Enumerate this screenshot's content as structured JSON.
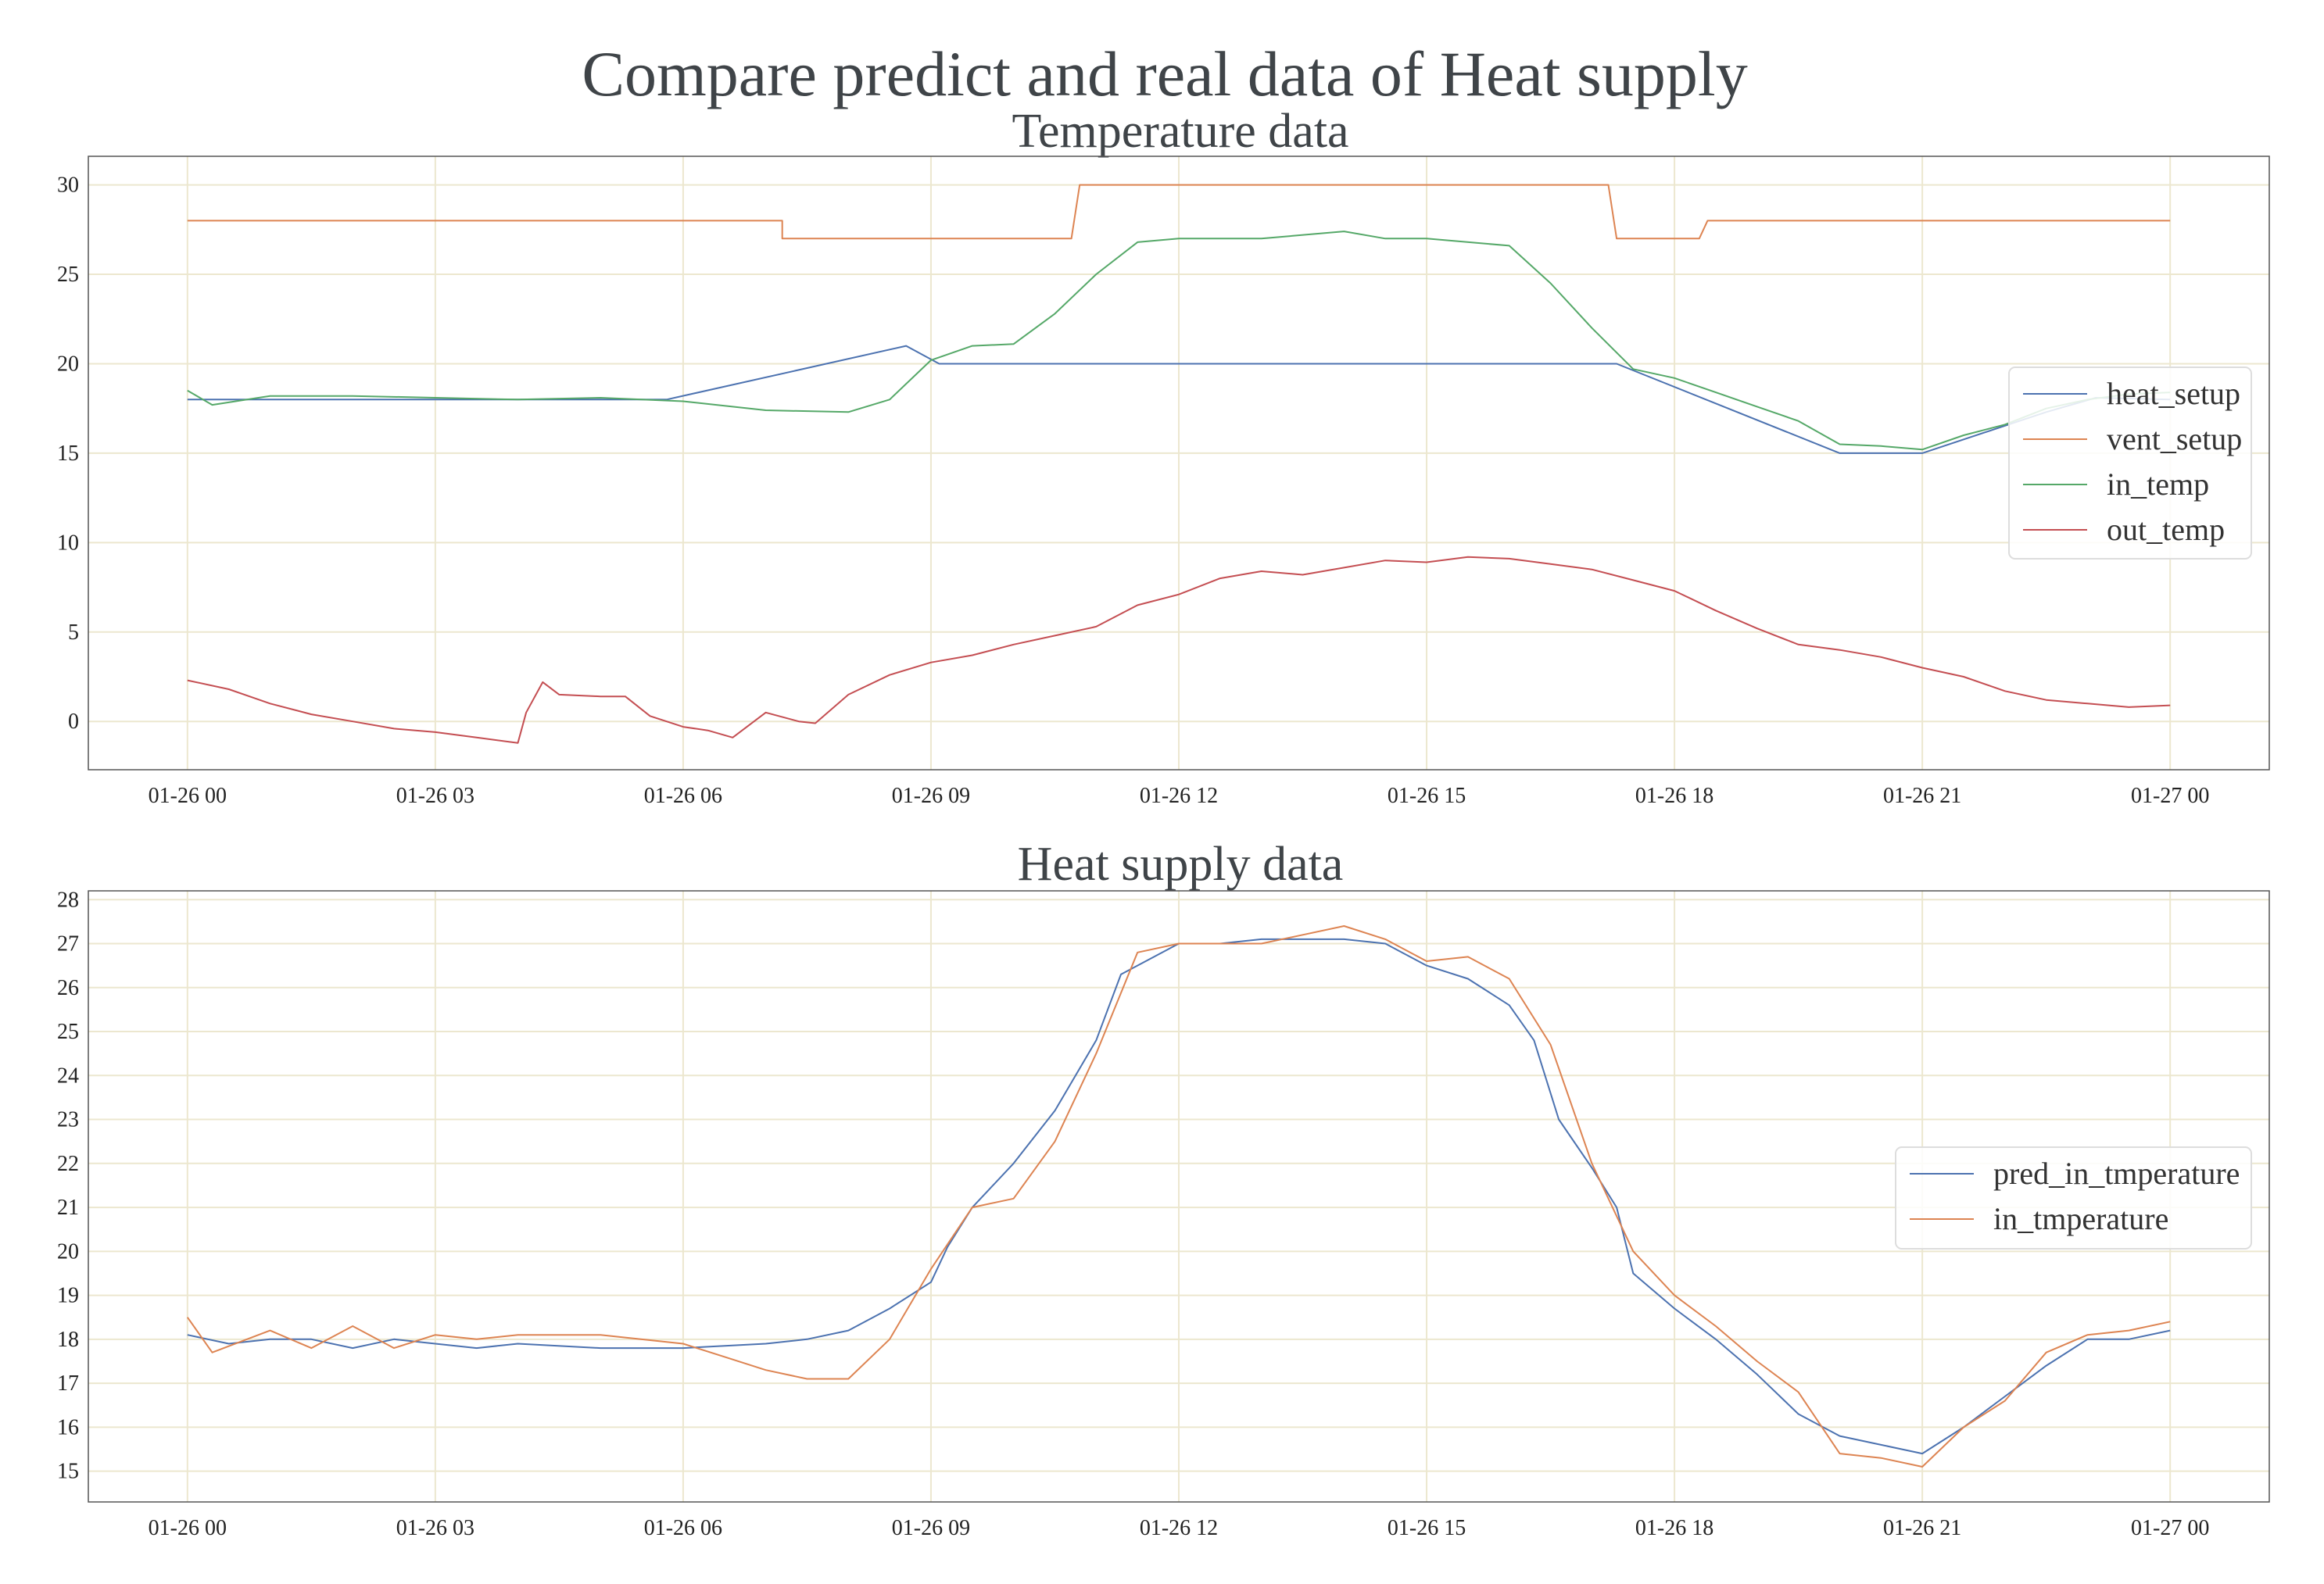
{
  "figure": {
    "title": "Compare predict and real data of Heat supply"
  },
  "chart_data": [
    {
      "type": "line",
      "title": "Temperature data",
      "xlabel": "",
      "ylabel": "",
      "x_ticks": [
        "01-26 00",
        "01-26 03",
        "01-26 06",
        "01-26 09",
        "01-26 12",
        "01-26 15",
        "01-26 18",
        "01-26 21",
        "01-27 00"
      ],
      "x_tick_hours": [
        0,
        3,
        6,
        9,
        12,
        15,
        18,
        21,
        24
      ],
      "xlim_hours": [
        -1.2,
        25.2
      ],
      "ylim": [
        -2.7,
        31.6
      ],
      "y_ticks": [
        0,
        5,
        10,
        15,
        20,
        25,
        30
      ],
      "grid": true,
      "legend": "right",
      "series": [
        {
          "name": "heat_setup",
          "color": "#4c72b0",
          "points": [
            [
              0,
              18
            ],
            [
              5.8,
              18
            ],
            [
              8.7,
              21
            ],
            [
              9.1,
              20
            ],
            [
              17.3,
              20
            ],
            [
              20,
              15
            ],
            [
              21,
              15
            ],
            [
              22.5,
              17.3
            ],
            [
              23.1,
              18.1
            ],
            [
              24,
              18
            ]
          ]
        },
        {
          "name": "vent_setup",
          "color": "#dd8452",
          "points": [
            [
              0,
              28
            ],
            [
              7.2,
              28
            ],
            [
              7.2,
              27
            ],
            [
              10.7,
              27
            ],
            [
              10.8,
              30
            ],
            [
              17.2,
              30
            ],
            [
              17.3,
              27
            ],
            [
              18.3,
              27
            ],
            [
              18.4,
              28
            ],
            [
              24,
              28
            ]
          ]
        },
        {
          "name": "in_temp",
          "color": "#55a868",
          "points": [
            [
              0,
              18.5
            ],
            [
              0.3,
              17.7
            ],
            [
              1,
              18.2
            ],
            [
              2,
              18.2
            ],
            [
              3,
              18.1
            ],
            [
              4,
              18
            ],
            [
              5,
              18.1
            ],
            [
              6,
              17.9
            ],
            [
              7,
              17.4
            ],
            [
              8,
              17.3
            ],
            [
              8.5,
              18
            ],
            [
              9,
              20.2
            ],
            [
              9.5,
              21
            ],
            [
              10,
              21.1
            ],
            [
              10.5,
              22.8
            ],
            [
              11,
              25
            ],
            [
              11.5,
              26.8
            ],
            [
              12,
              27
            ],
            [
              13,
              27
            ],
            [
              14,
              27.4
            ],
            [
              14.5,
              27
            ],
            [
              15,
              27
            ],
            [
              16,
              26.6
            ],
            [
              16.5,
              24.5
            ],
            [
              17,
              22
            ],
            [
              17.5,
              19.7
            ],
            [
              18,
              19.2
            ],
            [
              18.5,
              18.4
            ],
            [
              19,
              17.6
            ],
            [
              19.5,
              16.8
            ],
            [
              20,
              15.5
            ],
            [
              20.5,
              15.4
            ],
            [
              21,
              15.2
            ],
            [
              21.5,
              16
            ],
            [
              22,
              16.6
            ],
            [
              22.5,
              17.5
            ],
            [
              23,
              18
            ],
            [
              23.5,
              18.3
            ],
            [
              24,
              18.4
            ]
          ]
        },
        {
          "name": "out_temp",
          "color": "#c44e52",
          "points": [
            [
              0,
              2.3
            ],
            [
              0.5,
              1.8
            ],
            [
              1,
              1
            ],
            [
              1.5,
              0.4
            ],
            [
              2,
              0
            ],
            [
              2.5,
              -0.4
            ],
            [
              3,
              -0.6
            ],
            [
              3.5,
              -0.9
            ],
            [
              4,
              -1.2
            ],
            [
              4.1,
              0.5
            ],
            [
              4.3,
              2.2
            ],
            [
              4.5,
              1.5
            ],
            [
              5,
              1.4
            ],
            [
              5.3,
              1.4
            ],
            [
              5.6,
              0.3
            ],
            [
              6,
              -0.3
            ],
            [
              6.3,
              -0.5
            ],
            [
              6.6,
              -0.9
            ],
            [
              7,
              0.5
            ],
            [
              7.4,
              0
            ],
            [
              7.6,
              -0.1
            ],
            [
              8,
              1.5
            ],
            [
              8.5,
              2.6
            ],
            [
              9,
              3.3
            ],
            [
              9.5,
              3.7
            ],
            [
              10,
              4.3
            ],
            [
              10.5,
              4.8
            ],
            [
              11,
              5.3
            ],
            [
              11.5,
              6.5
            ],
            [
              12,
              7.1
            ],
            [
              12.5,
              8
            ],
            [
              13,
              8.4
            ],
            [
              13.5,
              8.2
            ],
            [
              14,
              8.6
            ],
            [
              14.5,
              9
            ],
            [
              15,
              8.9
            ],
            [
              15.5,
              9.2
            ],
            [
              16,
              9.1
            ],
            [
              16.5,
              8.8
            ],
            [
              17,
              8.5
            ],
            [
              17.5,
              7.9
            ],
            [
              18,
              7.3
            ],
            [
              18.5,
              6.2
            ],
            [
              19,
              5.2
            ],
            [
              19.5,
              4.3
            ],
            [
              20,
              4
            ],
            [
              20.5,
              3.6
            ],
            [
              21,
              3
            ],
            [
              21.5,
              2.5
            ],
            [
              22,
              1.7
            ],
            [
              22.5,
              1.2
            ],
            [
              23,
              1
            ],
            [
              23.5,
              0.8
            ],
            [
              24,
              0.9
            ]
          ]
        }
      ]
    },
    {
      "type": "line",
      "title": "Heat supply data",
      "xlabel": "",
      "ylabel": "",
      "x_ticks": [
        "01-26 00",
        "01-26 03",
        "01-26 06",
        "01-26 09",
        "01-26 12",
        "01-26 15",
        "01-26 18",
        "01-26 21",
        "01-27 00"
      ],
      "x_tick_hours": [
        0,
        3,
        6,
        9,
        12,
        15,
        18,
        21,
        24
      ],
      "xlim_hours": [
        -1.2,
        25.2
      ],
      "ylim": [
        14.3,
        28.2
      ],
      "y_ticks": [
        15,
        16,
        17,
        18,
        19,
        20,
        21,
        22,
        23,
        24,
        25,
        26,
        27,
        28
      ],
      "grid": true,
      "legend": "right",
      "series": [
        {
          "name": "pred_in_tmperature",
          "color": "#4c72b0",
          "points": [
            [
              0,
              18.1
            ],
            [
              0.5,
              17.9
            ],
            [
              1,
              18
            ],
            [
              1.5,
              18
            ],
            [
              2,
              17.8
            ],
            [
              2.5,
              18
            ],
            [
              3,
              17.9
            ],
            [
              3.5,
              17.8
            ],
            [
              4,
              17.9
            ],
            [
              5,
              17.8
            ],
            [
              6,
              17.8
            ],
            [
              7,
              17.9
            ],
            [
              7.5,
              18
            ],
            [
              8,
              18.2
            ],
            [
              8.5,
              18.7
            ],
            [
              9,
              19.3
            ],
            [
              9.2,
              20.1
            ],
            [
              9.5,
              21
            ],
            [
              10,
              22
            ],
            [
              10.5,
              23.2
            ],
            [
              11,
              24.8
            ],
            [
              11.3,
              26.3
            ],
            [
              11.7,
              26.7
            ],
            [
              12,
              27
            ],
            [
              12.5,
              27
            ],
            [
              13,
              27.1
            ],
            [
              13.5,
              27.1
            ],
            [
              14,
              27.1
            ],
            [
              14.5,
              27
            ],
            [
              15,
              26.5
            ],
            [
              15.5,
              26.2
            ],
            [
              16,
              25.6
            ],
            [
              16.3,
              24.8
            ],
            [
              16.6,
              23
            ],
            [
              17,
              21.9
            ],
            [
              17.3,
              21
            ],
            [
              17.5,
              19.5
            ],
            [
              18,
              18.7
            ],
            [
              18.5,
              18
            ],
            [
              19,
              17.2
            ],
            [
              19.5,
              16.3
            ],
            [
              20,
              15.8
            ],
            [
              20.5,
              15.6
            ],
            [
              21,
              15.4
            ],
            [
              21.5,
              16
            ],
            [
              22,
              16.7
            ],
            [
              22.5,
              17.4
            ],
            [
              23,
              18
            ],
            [
              23.5,
              18
            ],
            [
              24,
              18.2
            ]
          ]
        },
        {
          "name": "in_tmperature",
          "color": "#dd8452",
          "points": [
            [
              0,
              18.5
            ],
            [
              0.3,
              17.7
            ],
            [
              1,
              18.2
            ],
            [
              1.5,
              17.8
            ],
            [
              2,
              18.3
            ],
            [
              2.5,
              17.8
            ],
            [
              3,
              18.1
            ],
            [
              3.5,
              18
            ],
            [
              4,
              18.1
            ],
            [
              5,
              18.1
            ],
            [
              6,
              17.9
            ],
            [
              6.5,
              17.6
            ],
            [
              7,
              17.3
            ],
            [
              7.5,
              17.1
            ],
            [
              8,
              17.1
            ],
            [
              8.5,
              18
            ],
            [
              9,
              19.6
            ],
            [
              9.5,
              21
            ],
            [
              10,
              21.2
            ],
            [
              10.5,
              22.5
            ],
            [
              11,
              24.5
            ],
            [
              11.5,
              26.8
            ],
            [
              12,
              27
            ],
            [
              12.5,
              27
            ],
            [
              13,
              27
            ],
            [
              13.5,
              27.2
            ],
            [
              14,
              27.4
            ],
            [
              14.5,
              27.1
            ],
            [
              15,
              26.6
            ],
            [
              15.5,
              26.7
            ],
            [
              16,
              26.2
            ],
            [
              16.5,
              24.7
            ],
            [
              17,
              22
            ],
            [
              17.5,
              20
            ],
            [
              18,
              19
            ],
            [
              18.5,
              18.3
            ],
            [
              19,
              17.5
            ],
            [
              19.5,
              16.8
            ],
            [
              20,
              15.4
            ],
            [
              20.5,
              15.3
            ],
            [
              21,
              15.1
            ],
            [
              21.5,
              16
            ],
            [
              22,
              16.6
            ],
            [
              22.5,
              17.7
            ],
            [
              23,
              18.1
            ],
            [
              23.5,
              18.2
            ],
            [
              24,
              18.4
            ]
          ]
        }
      ]
    }
  ]
}
